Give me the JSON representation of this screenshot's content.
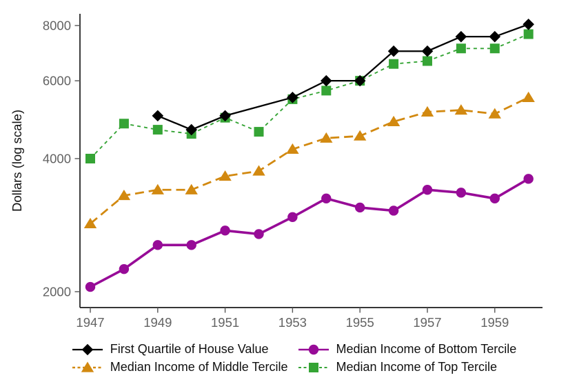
{
  "figure": {
    "background": "#ffffff"
  },
  "axis": {
    "ylabel": "Dollars (log scale)",
    "line_color": "#1a1a1a",
    "tick_color": "#555555",
    "tick_label_color": "#636363",
    "label_color": "#111111"
  },
  "chart_data": {
    "type": "line",
    "title": "",
    "xlabel": "",
    "ylabel": "Dollars (log scale)",
    "yscale": "log",
    "grid": false,
    "legend_position": "bottom",
    "x": [
      1947,
      1948,
      1949,
      1950,
      1951,
      1952,
      1953,
      1954,
      1955,
      1956,
      1957,
      1958,
      1959,
      1960
    ],
    "xticks": [
      1947,
      1949,
      1951,
      1953,
      1955,
      1957,
      1959
    ],
    "yticks": [
      2000,
      4000,
      6000,
      8000
    ],
    "xlim": [
      1946.7,
      1960.4
    ],
    "ylim": [
      1900,
      8400
    ],
    "series": [
      {
        "name": "Median Income of Bottom Tercile",
        "marker": "circle",
        "color": "#970B97",
        "line_style": "solid",
        "line_width": 3.6,
        "values": [
          2050,
          2250,
          2550,
          2550,
          2750,
          2700,
          2950,
          3250,
          3100,
          3050,
          3400,
          3350,
          3250,
          3600
        ]
      },
      {
        "name": "Median Income of Middle Tercile",
        "marker": "triangle",
        "color": "#D28910",
        "line_style": "long-dash",
        "line_width": 2.8,
        "values": [
          2850,
          3300,
          3400,
          3400,
          3650,
          3750,
          4200,
          4450,
          4500,
          4850,
          5100,
          5150,
          5050,
          5500
        ]
      },
      {
        "name": "Median Income of Top Tercile",
        "marker": "square",
        "color": "#35A435",
        "line_style": "dash",
        "line_width": 1.9,
        "values": [
          4000,
          4800,
          4650,
          4550,
          4950,
          4600,
          5450,
          5700,
          6000,
          6550,
          6650,
          7100,
          7100,
          7650
        ]
      },
      {
        "name": "First Quartile of House Value",
        "marker": "diamond",
        "color": "#000000",
        "line_style": "solid",
        "line_width": 2.3,
        "values": [
          null,
          null,
          5000,
          4650,
          5000,
          null,
          5500,
          6000,
          6000,
          7000,
          7000,
          7550,
          7550,
          8050
        ]
      }
    ],
    "legend_order": [
      3,
      0,
      1,
      2
    ]
  }
}
